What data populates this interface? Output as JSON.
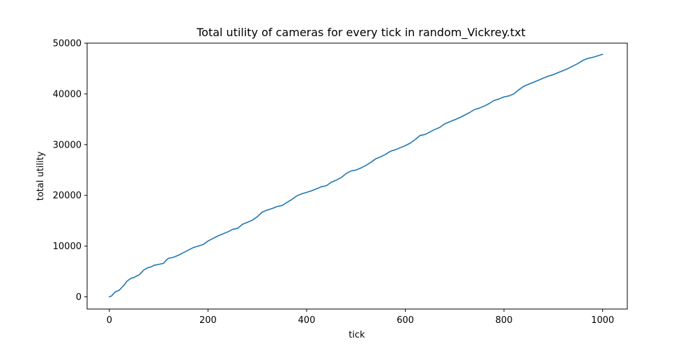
{
  "chart_data": {
    "type": "line",
    "title": "Total utility of cameras for every tick in random_Vickrey.txt",
    "xlabel": "tick",
    "ylabel": "total utility",
    "xlim": [
      -45,
      1050
    ],
    "ylim": [
      -2400,
      50000
    ],
    "xticks": [
      0,
      200,
      400,
      600,
      800,
      1000
    ],
    "yticks": [
      0,
      10000,
      20000,
      30000,
      40000,
      50000
    ],
    "grid": false,
    "series": [
      {
        "color": "#1f77b4",
        "points": [
          [
            0,
            0
          ],
          [
            5,
            200
          ],
          [
            10,
            800
          ],
          [
            15,
            1100
          ],
          [
            20,
            1300
          ],
          [
            25,
            1800
          ],
          [
            30,
            2300
          ],
          [
            35,
            3000
          ],
          [
            40,
            3400
          ],
          [
            45,
            3700
          ],
          [
            50,
            3800
          ],
          [
            55,
            4100
          ],
          [
            60,
            4300
          ],
          [
            65,
            4800
          ],
          [
            70,
            5300
          ],
          [
            75,
            5600
          ],
          [
            80,
            5800
          ],
          [
            85,
            5900
          ],
          [
            90,
            6200
          ],
          [
            95,
            6300
          ],
          [
            100,
            6400
          ],
          [
            110,
            6600
          ],
          [
            115,
            7200
          ],
          [
            120,
            7600
          ],
          [
            130,
            7800
          ],
          [
            140,
            8200
          ],
          [
            150,
            8700
          ],
          [
            160,
            9200
          ],
          [
            170,
            9700
          ],
          [
            180,
            10000
          ],
          [
            190,
            10300
          ],
          [
            200,
            11000
          ],
          [
            210,
            11500
          ],
          [
            220,
            12000
          ],
          [
            230,
            12400
          ],
          [
            240,
            12800
          ],
          [
            250,
            13300
          ],
          [
            260,
            13500
          ],
          [
            270,
            14300
          ],
          [
            280,
            14700
          ],
          [
            290,
            15100
          ],
          [
            300,
            15800
          ],
          [
            310,
            16700
          ],
          [
            320,
            17100
          ],
          [
            330,
            17400
          ],
          [
            340,
            17800
          ],
          [
            350,
            18000
          ],
          [
            360,
            18600
          ],
          [
            370,
            19200
          ],
          [
            380,
            19900
          ],
          [
            390,
            20300
          ],
          [
            400,
            20600
          ],
          [
            410,
            20900
          ],
          [
            420,
            21300
          ],
          [
            430,
            21700
          ],
          [
            440,
            21900
          ],
          [
            450,
            22600
          ],
          [
            460,
            23000
          ],
          [
            470,
            23500
          ],
          [
            480,
            24300
          ],
          [
            490,
            24800
          ],
          [
            500,
            25000
          ],
          [
            510,
            25400
          ],
          [
            520,
            25900
          ],
          [
            530,
            26500
          ],
          [
            540,
            27200
          ],
          [
            550,
            27600
          ],
          [
            560,
            28100
          ],
          [
            570,
            28700
          ],
          [
            580,
            29000
          ],
          [
            590,
            29400
          ],
          [
            600,
            29800
          ],
          [
            610,
            30300
          ],
          [
            620,
            31000
          ],
          [
            630,
            31800
          ],
          [
            640,
            32000
          ],
          [
            650,
            32500
          ],
          [
            660,
            33000
          ],
          [
            670,
            33400
          ],
          [
            680,
            34100
          ],
          [
            690,
            34500
          ],
          [
            700,
            34900
          ],
          [
            710,
            35300
          ],
          [
            720,
            35800
          ],
          [
            730,
            36300
          ],
          [
            740,
            36900
          ],
          [
            750,
            37200
          ],
          [
            760,
            37600
          ],
          [
            770,
            38100
          ],
          [
            780,
            38700
          ],
          [
            790,
            39000
          ],
          [
            800,
            39400
          ],
          [
            810,
            39600
          ],
          [
            820,
            40000
          ],
          [
            830,
            40800
          ],
          [
            840,
            41500
          ],
          [
            850,
            41900
          ],
          [
            860,
            42300
          ],
          [
            870,
            42700
          ],
          [
            880,
            43100
          ],
          [
            890,
            43500
          ],
          [
            900,
            43800
          ],
          [
            910,
            44200
          ],
          [
            920,
            44600
          ],
          [
            930,
            45000
          ],
          [
            940,
            45500
          ],
          [
            950,
            46000
          ],
          [
            960,
            46600
          ],
          [
            970,
            47000
          ],
          [
            980,
            47200
          ],
          [
            990,
            47500
          ],
          [
            1000,
            47800
          ]
        ]
      }
    ]
  }
}
